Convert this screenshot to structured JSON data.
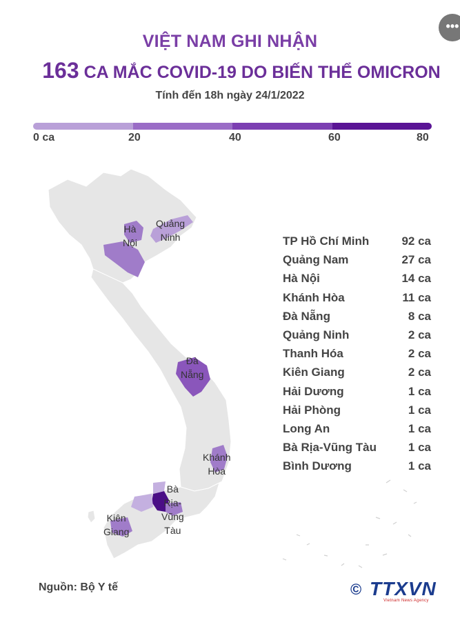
{
  "header": {
    "title_line1": "VIỆT NAM GHI NHẬN",
    "title_count": "163",
    "title_line2_rest": " CA MẮC COVID-19 DO BIẾN THỂ OMICRON",
    "subtitle": "Tính đến 18h ngày 24/1/2022",
    "more_icon": "•••"
  },
  "legend_scale": {
    "ticks": [
      "0 ca",
      "20",
      "40",
      "60",
      "80"
    ],
    "colors": [
      "#b9a0d8",
      "#9a6cc6",
      "#7c3fb2",
      "#5a1495"
    ]
  },
  "map": {
    "base_color": "#e6e6e6",
    "labels": [
      {
        "id": "ha-noi",
        "lines": [
          "Hà",
          "Nội"
        ]
      },
      {
        "id": "quang-ninh",
        "lines": [
          "Quảng",
          "Ninh"
        ]
      },
      {
        "id": "da-nang",
        "lines": [
          "Đà",
          "Nẵng"
        ]
      },
      {
        "id": "khanh-hoa",
        "lines": [
          "Khánh",
          "Hòa"
        ]
      },
      {
        "id": "ba-ria",
        "lines": [
          "Bà",
          "Rịa-",
          "Vũng",
          "Tàu"
        ]
      },
      {
        "id": "kien-giang",
        "lines": [
          "Kiên",
          "Giang"
        ]
      }
    ]
  },
  "chart_data": {
    "type": "table",
    "title": "VIỆT NAM GHI NHẬN 163 CA MẮC COVID-19 DO BIẾN THỂ OMICRON",
    "subtitle": "Tính đến 18h ngày 24/1/2022",
    "unit": "ca",
    "categories": [
      "TP Hồ Chí Minh",
      "Quảng Nam",
      "Hà Nội",
      "Khánh Hòa",
      "Đà Nẵng",
      "Quảng Ninh",
      "Thanh Hóa",
      "Kiên Giang",
      "Hải Dương",
      "Hải Phòng",
      "Long An",
      "Bà Rịa-Vũng Tàu",
      "Bình Dương"
    ],
    "values": [
      92,
      27,
      14,
      11,
      8,
      2,
      2,
      2,
      1,
      1,
      1,
      1,
      1
    ],
    "value_labels": [
      "92 ca",
      "27 ca",
      "14 ca",
      "11 ca",
      "8 ca",
      "2 ca",
      "2 ca",
      "2 ca",
      "1 ca",
      "1 ca",
      "1 ca",
      "1 ca",
      "1 ca"
    ],
    "scale_range": [
      0,
      80
    ]
  },
  "footer": {
    "source": "Nguồn: Bộ Y tế",
    "logo_copyright": "©",
    "logo_brand": "TTXVN",
    "logo_tagline": "Vietnam News Agency"
  }
}
